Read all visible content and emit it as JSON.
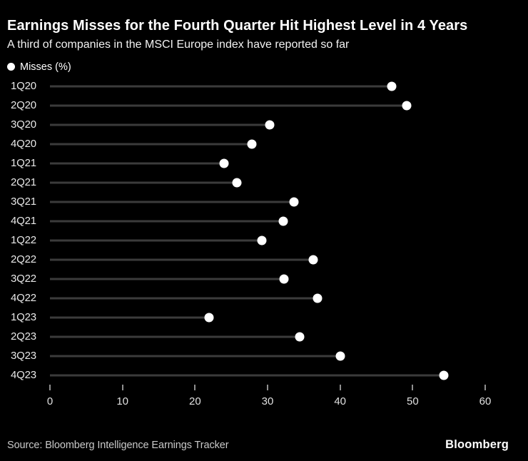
{
  "header": {
    "title": "Earnings Misses for the Fourth Quarter Hit Highest Level in 4 Years",
    "subtitle": "A third of companies in the MSCI Europe index have reported so far"
  },
  "legend": {
    "label": "Misses (%)"
  },
  "chart_data": {
    "type": "bar",
    "variant": "lollipop",
    "orientation": "horizontal",
    "title": "Earnings Misses for the Fourth Quarter Hit Highest Level in 4 Years",
    "subtitle": "A third of companies in the MSCI Europe index have reported so far",
    "categories": [
      "1Q20",
      "2Q20",
      "3Q20",
      "4Q20",
      "1Q21",
      "2Q21",
      "3Q21",
      "4Q21",
      "1Q22",
      "2Q22",
      "3Q22",
      "4Q22",
      "1Q23",
      "2Q23",
      "3Q23",
      "4Q23"
    ],
    "values": [
      47.1,
      49.2,
      30.3,
      27.8,
      24.0,
      25.8,
      33.6,
      32.2,
      29.2,
      36.3,
      32.3,
      36.9,
      21.9,
      34.4,
      40.0,
      54.3
    ],
    "xlabel": "",
    "ylabel": "",
    "xlim": [
      0,
      60
    ],
    "x_ticks": [
      0,
      10,
      20,
      30,
      40,
      50,
      60
    ],
    "grid": false,
    "legend": [
      "Misses (%)"
    ],
    "legend_position": "top-left"
  },
  "footer": {
    "source": "Source: Bloomberg Intelligence Earnings Tracker",
    "brand": "Bloomberg"
  },
  "colors": {
    "background": "#000000",
    "dot": "#ffffff",
    "stem": "#3b3b3b",
    "title_text": "#ffffff",
    "muted_text": "#c9c9c9",
    "tick": "#8f8f8f"
  }
}
